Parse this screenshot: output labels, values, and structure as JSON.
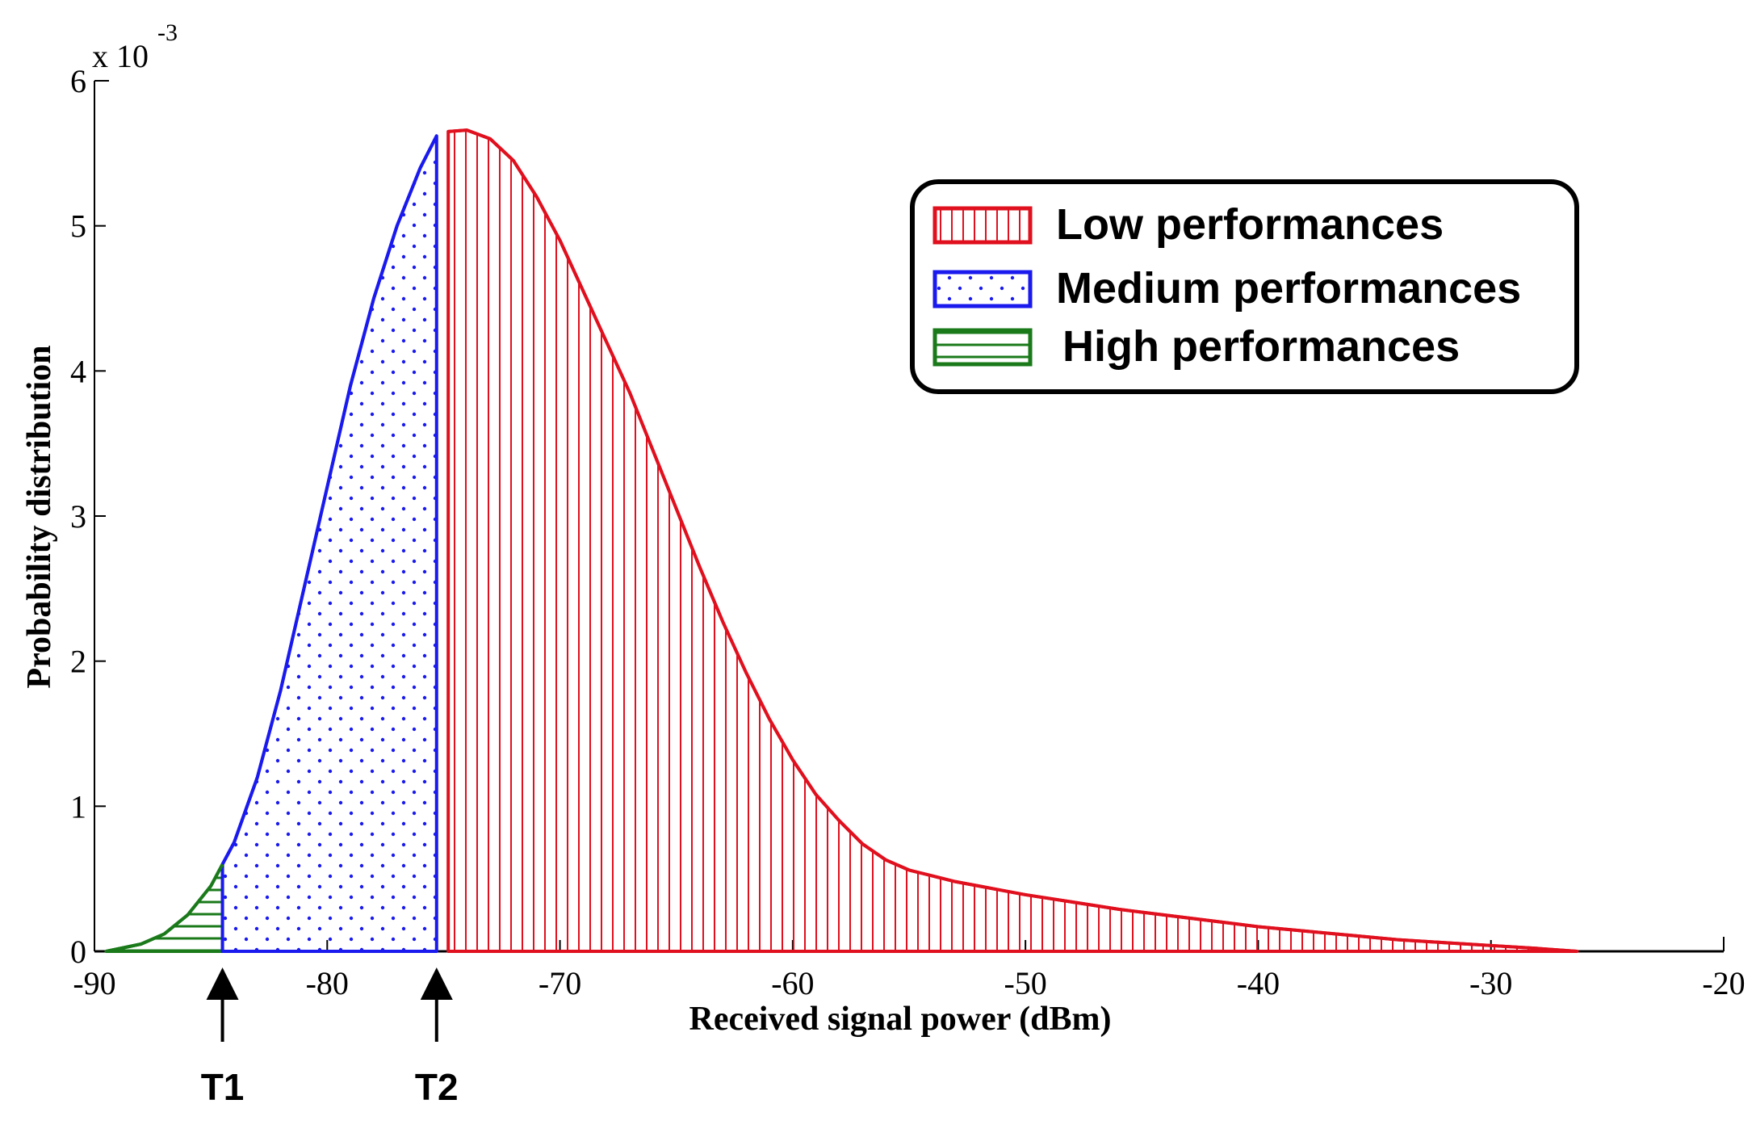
{
  "chart_data": {
    "type": "area",
    "title": "",
    "xlabel": "Received signal power (dBm)",
    "ylabel": "Probability distribution",
    "y_scale_label": "x 10",
    "y_scale_exponent": "-3",
    "xlim": [
      -90,
      -20
    ],
    "ylim": [
      0,
      6
    ],
    "x_ticks": [
      -90,
      -80,
      -70,
      -60,
      -50,
      -40,
      -30,
      -20
    ],
    "x_tick_labels": [
      "-90",
      "-80",
      "-70",
      "-60",
      "-50",
      "-40",
      "-30",
      "-20"
    ],
    "y_ticks": [
      0,
      1,
      2,
      3,
      4,
      5,
      6
    ],
    "y_tick_labels": [
      "0",
      "1",
      "2",
      "3",
      "4",
      "5",
      "6"
    ],
    "curve": {
      "x": [
        -89.5,
        -88,
        -87,
        -86,
        -85,
        -84.5,
        -84,
        -83,
        -82,
        -81,
        -80,
        -79,
        -78,
        -77,
        -76,
        -75.3,
        -75,
        -74.8,
        -74,
        -73,
        -72,
        -71,
        -70,
        -69,
        -68,
        -67,
        -66,
        -65,
        -64,
        -63,
        -62,
        -61,
        -60,
        -59,
        -58,
        -57,
        -56,
        -55,
        -54,
        -53,
        -52,
        -51,
        -50,
        -48,
        -46,
        -44,
        -42,
        -40,
        -38,
        -36,
        -34,
        -32,
        -30,
        -28,
        -26.3
      ],
      "y": [
        0.0,
        0.05,
        0.12,
        0.25,
        0.45,
        0.6,
        0.75,
        1.2,
        1.8,
        2.5,
        3.2,
        3.9,
        4.5,
        5.0,
        5.4,
        5.62,
        5.64,
        5.65,
        5.66,
        5.6,
        5.45,
        5.2,
        4.9,
        4.55,
        4.2,
        3.85,
        3.45,
        3.05,
        2.65,
        2.27,
        1.92,
        1.6,
        1.32,
        1.08,
        0.9,
        0.74,
        0.63,
        0.56,
        0.52,
        0.48,
        0.45,
        0.42,
        0.39,
        0.34,
        0.29,
        0.25,
        0.21,
        0.17,
        0.14,
        0.11,
        0.08,
        0.06,
        0.04,
        0.02,
        0.0
      ]
    },
    "regions": [
      {
        "name": "High performances",
        "x_from": -89.5,
        "x_to": -84.5,
        "color": "#1a7a1a",
        "pattern": "horizontal-hatch"
      },
      {
        "name": "Medium performances",
        "x_from": -84.5,
        "x_to": -75.3,
        "color": "#1a1aee",
        "pattern": "dots"
      },
      {
        "name": "Low performances",
        "x_from": -74.8,
        "x_to": -26.3,
        "color": "#e0101e",
        "pattern": "vertical-hatch"
      }
    ],
    "thresholds": [
      {
        "label": "T1",
        "x": -84.5
      },
      {
        "label": "T2",
        "x": -75.3
      }
    ],
    "legend": {
      "position": "top-right",
      "entries": [
        "Low performances",
        "Medium performances",
        "High performances"
      ]
    }
  }
}
